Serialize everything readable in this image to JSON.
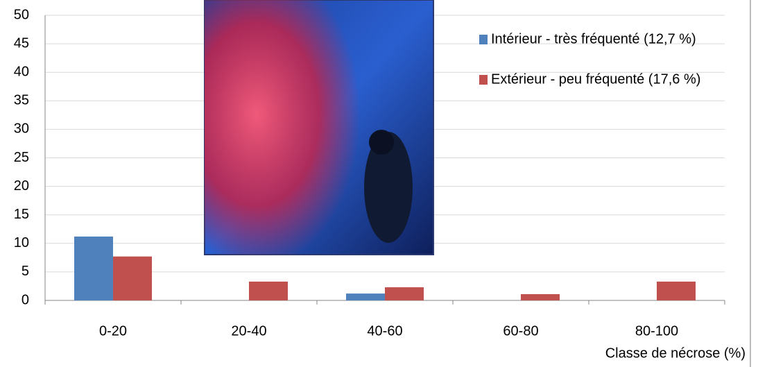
{
  "chart_data": {
    "type": "bar",
    "x_label": "Classe de nécrose (%)",
    "categories": [
      "0-20",
      "20-40",
      "40-60",
      "60-80",
      "80-100"
    ],
    "series": [
      {
        "name": "Intérieur - très fréquenté (12,7 %)",
        "color": "#4f81bd",
        "values": [
          11.2,
          0,
          1.2,
          0,
          0
        ]
      },
      {
        "name": "Extérieur - peu fréquenté (17,6 %)",
        "color": "#c0504d",
        "values": [
          7.7,
          3.3,
          2.3,
          1.1,
          3.3
        ]
      }
    ],
    "ylim": [
      0,
      50
    ],
    "yticks": [
      0,
      5,
      10,
      15,
      20,
      25,
      30,
      35,
      40,
      45,
      50
    ],
    "grid": true
  }
}
